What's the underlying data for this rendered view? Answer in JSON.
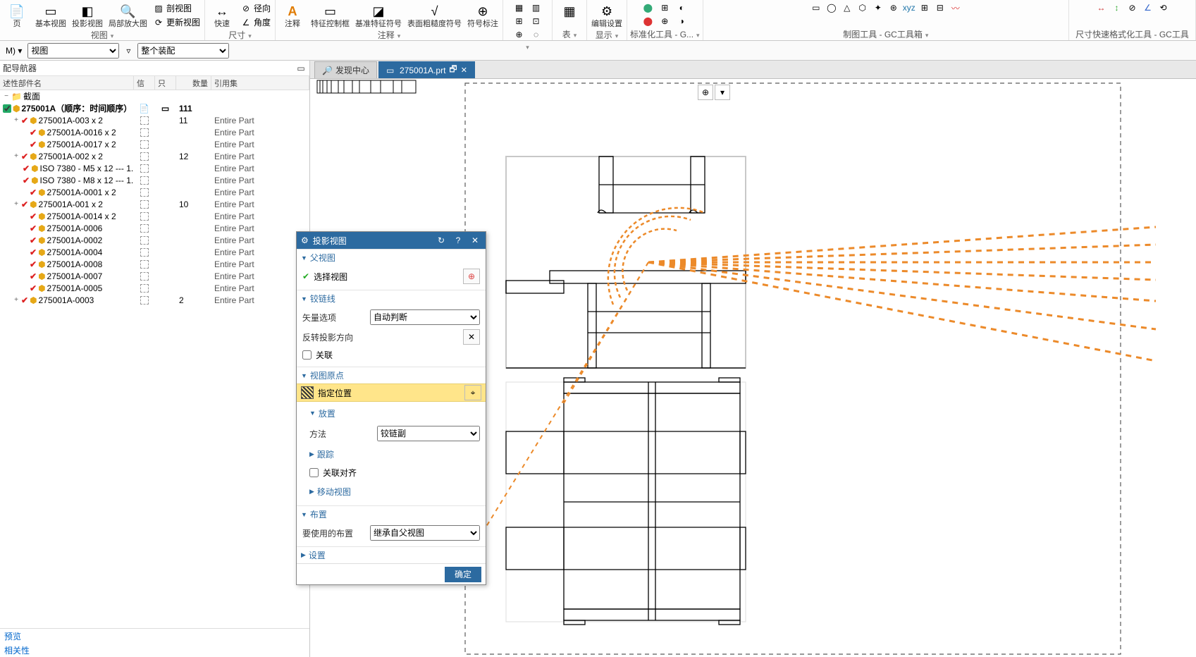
{
  "ribbon": {
    "groups": [
      {
        "label": "视图",
        "items": [
          {
            "label": "页"
          },
          {
            "label": "基本视图"
          },
          {
            "label": "投影视图"
          },
          {
            "label": "局部放大图"
          }
        ],
        "mini": [
          {
            "label": "剖视图"
          },
          {
            "label": "更新视图"
          }
        ]
      },
      {
        "label": "尺寸",
        "items": [
          {
            "label": "快速"
          }
        ],
        "mini": [
          {
            "label": "径向"
          },
          {
            "label": "角度"
          }
        ]
      },
      {
        "label": "注释",
        "items": [
          {
            "label": "注释"
          },
          {
            "label": "特征控制框"
          },
          {
            "label": "基准特征符号"
          },
          {
            "label": "表面粗糙度符号"
          },
          {
            "label": "符号标注"
          }
        ]
      },
      {
        "label": "",
        "mini2": true
      },
      {
        "label": "表",
        "items": [
          {
            "label": ""
          }
        ]
      },
      {
        "label": "显示",
        "items": [
          {
            "label": "编辑设置"
          }
        ]
      },
      {
        "label": "标准化工具 - G..."
      },
      {
        "label": "制图工具 - GC工具箱"
      },
      {
        "label": "尺寸快速格式化工具 - GC工具"
      }
    ]
  },
  "optbar": {
    "sel1_value": "视图",
    "sel2_value": "整个装配"
  },
  "nav": {
    "title": "配导航器",
    "headers": {
      "name": "述性部件名",
      "info": "信息",
      "only": "只",
      "qty": "数量",
      "ref": "引用集"
    },
    "root_label": "截面",
    "assembly": {
      "label": "275001A（顺序：时间顺序）",
      "qty": "111"
    },
    "rows": [
      {
        "indent": 1,
        "exp": "+",
        "label": "275001A-003 x 2",
        "qty": "11",
        "ref": "Entire Part"
      },
      {
        "indent": 2,
        "exp": "",
        "label": "275001A-0016 x 2",
        "qty": "",
        "ref": "Entire Part"
      },
      {
        "indent": 2,
        "exp": "",
        "label": "275001A-0017 x 2",
        "qty": "",
        "ref": "Entire Part"
      },
      {
        "indent": 1,
        "exp": "+",
        "label": "275001A-002 x 2",
        "qty": "12",
        "ref": "Entire Part"
      },
      {
        "indent": 2,
        "exp": "",
        "label": "ISO 7380 - M5 x 12 --- 1...",
        "qty": "",
        "ref": "Entire Part"
      },
      {
        "indent": 2,
        "exp": "",
        "label": "ISO 7380 - M8 x 12 --- 1...",
        "qty": "",
        "ref": "Entire Part"
      },
      {
        "indent": 2,
        "exp": "",
        "label": "275001A-0001 x 2",
        "qty": "",
        "ref": "Entire Part"
      },
      {
        "indent": 1,
        "exp": "+",
        "label": "275001A-001 x 2",
        "qty": "10",
        "ref": "Entire Part"
      },
      {
        "indent": 2,
        "exp": "",
        "label": "275001A-0014 x 2",
        "qty": "",
        "ref": "Entire Part"
      },
      {
        "indent": 2,
        "exp": "",
        "label": "275001A-0006",
        "qty": "",
        "ref": "Entire Part"
      },
      {
        "indent": 2,
        "exp": "",
        "label": "275001A-0002",
        "qty": "",
        "ref": "Entire Part"
      },
      {
        "indent": 2,
        "exp": "",
        "label": "275001A-0004",
        "qty": "",
        "ref": "Entire Part"
      },
      {
        "indent": 2,
        "exp": "",
        "label": "275001A-0008",
        "qty": "",
        "ref": "Entire Part"
      },
      {
        "indent": 2,
        "exp": "",
        "label": "275001A-0007",
        "qty": "",
        "ref": "Entire Part"
      },
      {
        "indent": 2,
        "exp": "",
        "label": "275001A-0005",
        "qty": "",
        "ref": "Entire Part"
      },
      {
        "indent": 1,
        "exp": "+",
        "label": "275001A-0003",
        "qty": "2",
        "ref": "Entire Part"
      }
    ],
    "footer": [
      "预览",
      "相关性"
    ]
  },
  "tabs": [
    {
      "label": "发现中心",
      "active": false
    },
    {
      "label": "275001A.prt",
      "active": true,
      "closable": true
    }
  ],
  "dialog": {
    "title": "投影视图",
    "sec_parent": "父视图",
    "select_view": "选择视图",
    "sec_hinge": "铰链线",
    "vector_label": "矢量选项",
    "vector_value": "自动判断",
    "reverse_label": "反转投影方向",
    "assoc_label": "关联",
    "sec_origin": "视图原点",
    "specify_pos": "指定位置",
    "sec_place": "放置",
    "method_label": "方法",
    "method_value": "铰链副",
    "track_label": "跟踪",
    "align_label": "关联对齐",
    "move_view": "移动视图",
    "sec_layout": "布置",
    "layout_label": "要使用的布置",
    "layout_value": "继承自父视图",
    "sec_settings": "设置",
    "ok": "确定"
  },
  "colors": {
    "accent": "#2c6aa0",
    "orange": "#ec8a2a",
    "highlight": "#ffe58a"
  }
}
